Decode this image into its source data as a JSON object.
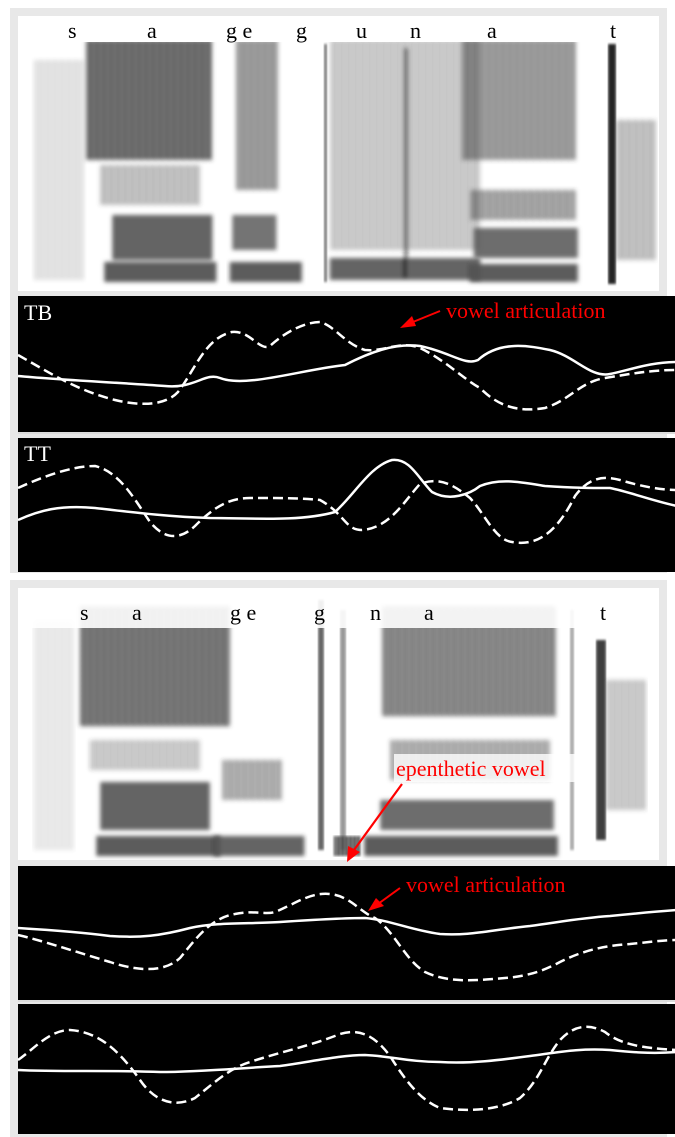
{
  "colors": {
    "frame": "#e8e8e8",
    "articulator_bg": "#000000",
    "trace": "#ffffff",
    "annotation": "#ff0000",
    "spectrogram_ink": "#000000"
  },
  "panels": [
    {
      "segments": [
        "s",
        "a",
        "g e",
        "g",
        "u",
        "n",
        "a",
        "t"
      ],
      "tracks": [
        {
          "label": "TB",
          "annotation": "vowel articulation"
        },
        {
          "label": "TT",
          "annotation": ""
        }
      ],
      "spectrogram_annotation": ""
    },
    {
      "segments": [
        "s",
        "a",
        "g e",
        "g",
        "n",
        "a",
        "t"
      ],
      "tracks": [
        {
          "label": "",
          "annotation": "vowel articulation"
        },
        {
          "label": "",
          "annotation": ""
        }
      ],
      "spectrogram_annotation": "epenthetic vowel"
    }
  ]
}
